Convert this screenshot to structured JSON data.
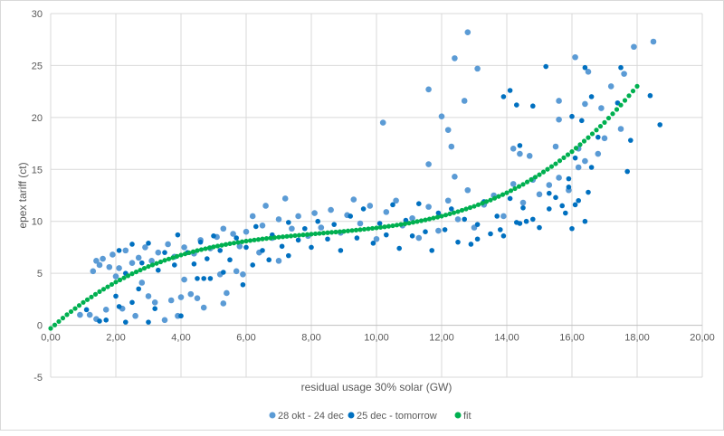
{
  "chart_data": {
    "type": "scatter",
    "title": "",
    "xlabel": "residual usage 30% solar (GW)",
    "ylabel": "epex tariff (ct)",
    "xlim": [
      0,
      20
    ],
    "ylim": [
      -5,
      30
    ],
    "x_ticks": [
      "0,00",
      "2,00",
      "4,00",
      "6,00",
      "8,00",
      "10,00",
      "12,00",
      "14,00",
      "16,00",
      "18,00",
      "20,00"
    ],
    "x_tick_values": [
      0,
      2,
      4,
      6,
      8,
      10,
      12,
      14,
      16,
      18,
      20
    ],
    "y_ticks": [
      "-5",
      "0",
      "5",
      "10",
      "15",
      "20",
      "25",
      "30"
    ],
    "y_tick_values": [
      -5,
      0,
      5,
      10,
      15,
      20,
      25,
      30
    ],
    "grid": true,
    "legend_position": "bottom",
    "series": [
      {
        "name": "28 okt - 24 dec",
        "color": "#5B9BD5",
        "points": [
          [
            12.8,
            28.2
          ],
          [
            12.4,
            25.7
          ],
          [
            13.1,
            24.7
          ],
          [
            11.6,
            22.7
          ],
          [
            10.2,
            19.5
          ],
          [
            12.0,
            20.1
          ],
          [
            12.2,
            18.8
          ],
          [
            12.3,
            17.2
          ],
          [
            12.7,
            21.6
          ],
          [
            16.1,
            25.8
          ],
          [
            16.5,
            24.4
          ],
          [
            17.9,
            26.8
          ],
          [
            18.5,
            27.3
          ],
          [
            17.6,
            24.2
          ],
          [
            17.2,
            23.0
          ],
          [
            16.4,
            21.3
          ],
          [
            15.6,
            21.6
          ],
          [
            15.6,
            19.8
          ],
          [
            16.9,
            20.9
          ],
          [
            17.5,
            18.9
          ],
          [
            17.0,
            18.0
          ],
          [
            16.2,
            17.0
          ],
          [
            15.5,
            17.2
          ],
          [
            14.2,
            17.0
          ],
          [
            14.4,
            16.5
          ],
          [
            14.7,
            16.3
          ],
          [
            11.6,
            15.5
          ],
          [
            12.4,
            14.3
          ],
          [
            1.3,
            5.2
          ],
          [
            1.4,
            6.2
          ],
          [
            1.5,
            5.8
          ],
          [
            1.6,
            6.4
          ],
          [
            1.8,
            5.6
          ],
          [
            1.9,
            6.8
          ],
          [
            2.1,
            5.5
          ],
          [
            2.3,
            7.2
          ],
          [
            2.5,
            6.0
          ],
          [
            2.7,
            6.5
          ],
          [
            2.9,
            7.5
          ],
          [
            3.1,
            6.2
          ],
          [
            3.3,
            7.0
          ],
          [
            3.6,
            7.8
          ],
          [
            3.8,
            6.6
          ],
          [
            4.1,
            7.5
          ],
          [
            4.4,
            6.9
          ],
          [
            4.6,
            8.2
          ],
          [
            4.9,
            7.4
          ],
          [
            5.1,
            8.5
          ],
          [
            5.3,
            9.3
          ],
          [
            5.6,
            8.8
          ],
          [
            5.8,
            7.6
          ],
          [
            6.0,
            9.0
          ],
          [
            6.2,
            10.5
          ],
          [
            6.5,
            9.6
          ],
          [
            6.6,
            11.5
          ],
          [
            6.8,
            8.4
          ],
          [
            7.0,
            10.2
          ],
          [
            7.2,
            12.2
          ],
          [
            7.4,
            9.3
          ],
          [
            7.6,
            10.5
          ],
          [
            7.9,
            8.6
          ],
          [
            8.1,
            10.8
          ],
          [
            8.3,
            9.4
          ],
          [
            8.6,
            11.1
          ],
          [
            8.9,
            8.9
          ],
          [
            9.1,
            10.6
          ],
          [
            9.3,
            12.1
          ],
          [
            9.5,
            9.8
          ],
          [
            9.8,
            11.5
          ],
          [
            10.0,
            8.3
          ],
          [
            10.3,
            10.9
          ],
          [
            10.6,
            12.0
          ],
          [
            10.8,
            9.6
          ],
          [
            11.1,
            10.3
          ],
          [
            11.3,
            8.4
          ],
          [
            11.6,
            11.4
          ],
          [
            11.9,
            9.1
          ],
          [
            12.2,
            12.0
          ],
          [
            12.5,
            10.2
          ],
          [
            12.8,
            13.0
          ],
          [
            13.0,
            9.4
          ],
          [
            13.3,
            11.6
          ],
          [
            13.6,
            12.5
          ],
          [
            13.9,
            10.5
          ],
          [
            14.2,
            13.6
          ],
          [
            14.5,
            11.8
          ],
          [
            14.8,
            14.0
          ],
          [
            15.0,
            12.6
          ],
          [
            15.3,
            13.5
          ],
          [
            15.6,
            14.2
          ],
          [
            15.9,
            13.0
          ],
          [
            16.2,
            15.2
          ],
          [
            16.4,
            15.8
          ],
          [
            16.8,
            16.5
          ],
          [
            1.2,
            1.0
          ],
          [
            1.4,
            0.6
          ],
          [
            1.7,
            1.5
          ],
          [
            0.9,
            1.0
          ],
          [
            2.0,
            4.7
          ],
          [
            2.2,
            1.6
          ],
          [
            2.6,
            0.9
          ],
          [
            2.8,
            4.1
          ],
          [
            3.0,
            2.8
          ],
          [
            3.2,
            2.2
          ],
          [
            3.5,
            0.5
          ],
          [
            3.7,
            2.4
          ],
          [
            3.9,
            0.9
          ],
          [
            4.0,
            2.7
          ],
          [
            4.1,
            4.4
          ],
          [
            4.3,
            3.0
          ],
          [
            4.5,
            2.6
          ],
          [
            4.7,
            1.7
          ],
          [
            5.2,
            4.9
          ],
          [
            5.3,
            2.1
          ],
          [
            5.4,
            3.1
          ],
          [
            5.7,
            5.2
          ],
          [
            5.9,
            4.9
          ],
          [
            6.4,
            7.0
          ],
          [
            7.0,
            6.2
          ]
        ]
      },
      {
        "name": "25 dec - tomorrow",
        "color": "#0070C0",
        "points": [
          [
            15.2,
            24.9
          ],
          [
            16.4,
            24.8
          ],
          [
            17.5,
            24.8
          ],
          [
            14.1,
            22.6
          ],
          [
            13.9,
            22.0
          ],
          [
            14.3,
            21.2
          ],
          [
            14.8,
            21.1
          ],
          [
            16.6,
            22.0
          ],
          [
            18.4,
            22.1
          ],
          [
            18.7,
            19.3
          ],
          [
            17.8,
            17.8
          ],
          [
            17.7,
            14.8
          ],
          [
            16.3,
            19.7
          ],
          [
            16.0,
            20.1
          ],
          [
            14.4,
            17.3
          ],
          [
            17.4,
            21.4
          ],
          [
            16.8,
            18.1
          ],
          [
            16.1,
            16.1
          ],
          [
            16.6,
            15.2
          ],
          [
            15.9,
            14.1
          ],
          [
            15.3,
            12.7
          ],
          [
            15.9,
            13.3
          ],
          [
            16.2,
            12.0
          ],
          [
            16.5,
            12.8
          ],
          [
            16.1,
            11.6
          ],
          [
            15.5,
            12.3
          ],
          [
            15.8,
            10.8
          ],
          [
            14.6,
            10.0
          ],
          [
            13.8,
            9.2
          ],
          [
            13.1,
            8.3
          ],
          [
            14.4,
            9.8
          ],
          [
            1.1,
            1.5
          ],
          [
            1.5,
            0.4
          ],
          [
            1.7,
            0.5
          ],
          [
            2.0,
            2.8
          ],
          [
            2.1,
            1.8
          ],
          [
            2.3,
            0.3
          ],
          [
            2.5,
            2.2
          ],
          [
            2.7,
            3.5
          ],
          [
            3.0,
            0.3
          ],
          [
            3.2,
            1.6
          ],
          [
            4.0,
            0.9
          ],
          [
            4.5,
            4.5
          ],
          [
            4.7,
            4.5
          ],
          [
            4.9,
            4.5
          ],
          [
            5.3,
            5.1
          ],
          [
            5.9,
            3.9
          ],
          [
            6.2,
            5.8
          ],
          [
            6.7,
            6.3
          ],
          [
            7.3,
            6.7
          ],
          [
            2.1,
            7.2
          ],
          [
            2.3,
            5.0
          ],
          [
            2.5,
            7.8
          ],
          [
            2.8,
            6.0
          ],
          [
            3.0,
            7.9
          ],
          [
            3.3,
            5.3
          ],
          [
            3.5,
            7.0
          ],
          [
            3.8,
            5.8
          ],
          [
            3.9,
            8.7
          ],
          [
            4.2,
            7.0
          ],
          [
            4.4,
            5.9
          ],
          [
            4.6,
            8.0
          ],
          [
            4.8,
            6.4
          ],
          [
            5.0,
            8.6
          ],
          [
            5.2,
            7.2
          ],
          [
            5.5,
            6.3
          ],
          [
            5.7,
            8.4
          ],
          [
            6.0,
            7.5
          ],
          [
            6.3,
            9.5
          ],
          [
            6.5,
            7.2
          ],
          [
            6.8,
            8.7
          ],
          [
            7.1,
            7.6
          ],
          [
            7.3,
            9.9
          ],
          [
            7.6,
            8.2
          ],
          [
            7.8,
            9.3
          ],
          [
            8.0,
            7.5
          ],
          [
            8.2,
            10.0
          ],
          [
            8.5,
            8.3
          ],
          [
            8.7,
            9.7
          ],
          [
            8.9,
            7.2
          ],
          [
            9.2,
            10.5
          ],
          [
            9.4,
            8.4
          ],
          [
            9.6,
            11.2
          ],
          [
            9.9,
            7.9
          ],
          [
            10.1,
            9.8
          ],
          [
            10.3,
            8.7
          ],
          [
            10.5,
            11.6
          ],
          [
            10.7,
            7.4
          ],
          [
            10.9,
            10.1
          ],
          [
            11.1,
            8.6
          ],
          [
            11.3,
            11.7
          ],
          [
            11.5,
            9.0
          ],
          [
            11.7,
            7.2
          ],
          [
            11.9,
            10.8
          ],
          [
            12.1,
            9.2
          ],
          [
            12.3,
            11.2
          ],
          [
            12.5,
            8.0
          ],
          [
            12.7,
            10.2
          ],
          [
            12.9,
            7.8
          ],
          [
            13.1,
            9.7
          ],
          [
            13.3,
            11.9
          ],
          [
            13.5,
            8.8
          ],
          [
            13.7,
            10.5
          ],
          [
            13.9,
            8.6
          ],
          [
            14.1,
            12.2
          ],
          [
            14.3,
            9.9
          ],
          [
            14.5,
            11.3
          ],
          [
            14.8,
            10.2
          ],
          [
            15.0,
            9.4
          ],
          [
            15.3,
            11.2
          ],
          [
            15.7,
            11.5
          ],
          [
            16.0,
            9.3
          ],
          [
            16.4,
            10.0
          ]
        ]
      },
      {
        "name": "fit",
        "color": "#00B050",
        "points": [
          [
            0,
            -0.3
          ],
          [
            0.5,
            1.02
          ],
          [
            1,
            2.2
          ],
          [
            1.5,
            3.24
          ],
          [
            2,
            4.16
          ],
          [
            2.5,
            4.96
          ],
          [
            3,
            5.66
          ],
          [
            3.5,
            6.25
          ],
          [
            4,
            6.76
          ],
          [
            4.5,
            7.19
          ],
          [
            5,
            7.55
          ],
          [
            5.5,
            7.85
          ],
          [
            6,
            8.1
          ],
          [
            6.5,
            8.31
          ],
          [
            7,
            8.48
          ],
          [
            7.5,
            8.63
          ],
          [
            8,
            8.77
          ],
          [
            8.5,
            8.91
          ],
          [
            9,
            9.04
          ],
          [
            9.5,
            9.2
          ],
          [
            10,
            9.37
          ],
          [
            10.5,
            9.58
          ],
          [
            11,
            9.83
          ],
          [
            11.5,
            10.14
          ],
          [
            12,
            10.5
          ],
          [
            12.5,
            10.94
          ],
          [
            13,
            11.45
          ],
          [
            13.5,
            12.05
          ],
          [
            14,
            12.75
          ],
          [
            14.5,
            13.56
          ],
          [
            15,
            14.49
          ],
          [
            15.5,
            15.54
          ],
          [
            16,
            16.71
          ],
          [
            16.5,
            18.06
          ],
          [
            17,
            19.52
          ],
          [
            17.5,
            21.19
          ],
          [
            18,
            23.0
          ]
        ]
      }
    ]
  }
}
